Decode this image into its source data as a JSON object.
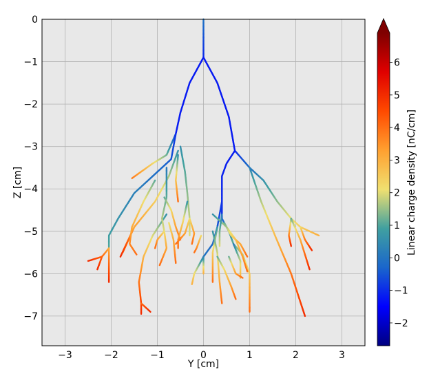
{
  "chart_data": {
    "type": "line",
    "title": "",
    "xlabel": "Y [cm]",
    "ylabel": "Z [cm]",
    "xlim": [
      -3.5,
      3.5
    ],
    "ylim": [
      -7.7,
      0.0
    ],
    "grid": true,
    "x_ticks": [
      -3,
      -2,
      -1,
      0,
      1,
      2,
      3
    ],
    "x_tick_labels": [
      "−3",
      "−2",
      "−1",
      "0",
      "1",
      "2",
      "3"
    ],
    "y_ticks": [
      0,
      -1,
      -2,
      -3,
      -4,
      -5,
      -6,
      -7
    ],
    "y_tick_labels": [
      "0",
      "−1",
      "−2",
      "−3",
      "−4",
      "−5",
      "−6",
      "−7"
    ],
    "colorbar": {
      "label": "Linear charge density [nC/cm]",
      "min": -2.7,
      "max": 6.9,
      "extend": "max",
      "ticks": [
        -2,
        -1,
        0,
        1,
        2,
        3,
        4,
        5,
        6
      ],
      "tick_labels": [
        "−2",
        "−1",
        "0",
        "1",
        "2",
        "3",
        "4",
        "5",
        "6"
      ],
      "colormap": [
        "#00007f",
        "#0000ff",
        "#1a66cc",
        "#40a0a0",
        "#f0e070",
        "#ffa030",
        "#ff4a00",
        "#e00000",
        "#7f0000"
      ]
    },
    "series": [
      {
        "values": [
          [
            0,
            0
          ],
          [
            0,
            -0.9
          ]
        ],
        "charge": [
          0,
          -1
        ]
      },
      {
        "values": [
          [
            0,
            -0.9
          ],
          [
            -0.3,
            -1.5
          ],
          [
            -0.5,
            -2.2
          ],
          [
            -0.6,
            -2.7
          ]
        ],
        "charge": [
          -1.2,
          -1.2
        ]
      },
      {
        "values": [
          [
            0,
            -0.9
          ],
          [
            0.3,
            -1.5
          ],
          [
            0.55,
            -2.3
          ],
          [
            0.68,
            -3.1
          ]
        ],
        "charge": [
          -1.2,
          -1.2
        ]
      },
      {
        "values": [
          [
            -0.6,
            -2.7
          ],
          [
            -0.8,
            -3.2
          ],
          [
            -1.1,
            -3.4
          ],
          [
            -1.55,
            -3.75
          ]
        ],
        "charge": [
          -1,
          3.8
        ]
      },
      {
        "values": [
          [
            -0.6,
            -2.7
          ],
          [
            -0.7,
            -3.3
          ],
          [
            -1.1,
            -3.7
          ],
          [
            -1.5,
            -4.1
          ],
          [
            -1.85,
            -4.7
          ],
          [
            -2.05,
            -5.1
          ],
          [
            -2.05,
            -5.4
          ]
        ],
        "charge": [
          -1,
          1
        ]
      },
      {
        "values": [
          [
            -2.05,
            -5.4
          ],
          [
            -2.2,
            -5.6
          ],
          [
            -2.5,
            -5.7
          ]
        ],
        "charge": [
          3,
          5
        ]
      },
      {
        "values": [
          [
            -2.05,
            -5.4
          ],
          [
            -2.05,
            -5.8
          ],
          [
            -2.05,
            -6.2
          ]
        ],
        "charge": [
          3,
          5
        ]
      },
      {
        "values": [
          [
            -2.2,
            -5.6
          ],
          [
            -2.3,
            -5.9
          ]
        ],
        "charge": [
          4,
          5
        ]
      },
      {
        "values": [
          [
            -0.55,
            -3.2
          ],
          [
            -0.6,
            -3.8
          ],
          [
            -0.55,
            -4.3
          ]
        ],
        "charge": [
          0.4,
          4
        ]
      },
      {
        "values": [
          [
            -0.55,
            -3.1
          ],
          [
            -0.75,
            -3.7
          ],
          [
            -1.05,
            -4.3
          ],
          [
            -1.5,
            -4.9
          ],
          [
            -1.75,
            -5.5
          ]
        ],
        "charge": [
          0.5,
          4
        ]
      },
      {
        "values": [
          [
            -1.5,
            -4.9
          ],
          [
            -1.8,
            -5.6
          ]
        ],
        "charge": [
          3,
          5
        ]
      },
      {
        "values": [
          [
            -1.05,
            -3.8
          ],
          [
            -1.3,
            -4.3
          ],
          [
            -1.55,
            -4.9
          ],
          [
            -1.6,
            -5.3
          ],
          [
            -1.45,
            -5.55
          ]
        ],
        "charge": [
          1,
          4
        ]
      },
      {
        "values": [
          [
            -0.8,
            -4.6
          ],
          [
            -1.1,
            -5.1
          ],
          [
            -1.3,
            -5.6
          ],
          [
            -1.4,
            -6.2
          ],
          [
            -1.35,
            -6.7
          ],
          [
            -1.35,
            -6.95
          ]
        ],
        "charge": [
          0.5,
          5
        ]
      },
      {
        "values": [
          [
            -1.35,
            -6.7
          ],
          [
            -1.15,
            -6.9
          ]
        ],
        "charge": [
          4,
          5
        ]
      },
      {
        "values": [
          [
            -0.8,
            -3.5
          ],
          [
            -0.8,
            -4.2
          ],
          [
            -0.9,
            -4.7
          ],
          [
            -0.85,
            -5.0
          ]
        ],
        "charge": [
          0,
          2
        ]
      },
      {
        "values": [
          [
            -0.85,
            -5.0
          ],
          [
            -1.0,
            -5.2
          ],
          [
            -1.05,
            -5.4
          ]
        ],
        "charge": [
          2,
          4
        ]
      },
      {
        "values": [
          [
            -0.85,
            -5.0
          ],
          [
            -0.8,
            -5.4
          ],
          [
            -0.95,
            -5.8
          ]
        ],
        "charge": [
          2,
          4
        ]
      },
      {
        "values": [
          [
            -0.75,
            -4.8
          ],
          [
            -0.65,
            -5.2
          ],
          [
            -0.6,
            -5.75
          ]
        ],
        "charge": [
          2,
          4
        ]
      },
      {
        "values": [
          [
            -0.85,
            -4.2
          ],
          [
            -0.7,
            -4.5
          ],
          [
            -0.6,
            -4.9
          ],
          [
            -0.5,
            -5.2
          ]
        ],
        "charge": [
          1,
          4
        ]
      },
      {
        "values": [
          [
            -0.5,
            -3.0
          ],
          [
            -0.4,
            -3.6
          ],
          [
            -0.35,
            -4.1
          ],
          [
            -0.3,
            -4.7
          ],
          [
            -0.3,
            -5.1
          ]
        ],
        "charge": [
          0.5,
          2
        ]
      },
      {
        "values": [
          [
            -0.35,
            -4.3
          ],
          [
            -0.45,
            -4.8
          ],
          [
            -0.55,
            -5.2
          ],
          [
            -0.55,
            -5.4
          ]
        ],
        "charge": [
          0.5,
          4
        ]
      },
      {
        "values": [
          [
            -0.3,
            -4.7
          ],
          [
            -0.4,
            -5.05
          ],
          [
            -0.6,
            -5.3
          ]
        ],
        "charge": [
          2,
          4
        ]
      },
      {
        "values": [
          [
            -0.3,
            -4.7
          ],
          [
            -0.2,
            -5.05
          ],
          [
            -0.25,
            -5.3
          ]
        ],
        "charge": [
          2,
          4
        ]
      },
      {
        "values": [
          [
            0.68,
            -3.1
          ],
          [
            1.0,
            -3.5
          ],
          [
            1.3,
            -3.8
          ],
          [
            1.6,
            -4.3
          ],
          [
            1.9,
            -4.7
          ],
          [
            2.1,
            -4.9
          ],
          [
            2.5,
            -5.1
          ]
        ],
        "charge": [
          -1.2,
          3
        ]
      },
      {
        "values": [
          [
            1.9,
            -4.7
          ],
          [
            1.85,
            -5.1
          ],
          [
            1.9,
            -5.35
          ]
        ],
        "charge": [
          1,
          5
        ]
      },
      {
        "values": [
          [
            2.1,
            -4.9
          ],
          [
            2.2,
            -5.2
          ],
          [
            2.35,
            -5.45
          ]
        ],
        "charge": [
          2,
          5
        ]
      },
      {
        "values": [
          [
            1.9,
            -4.7
          ],
          [
            2.1,
            -5.2
          ],
          [
            2.3,
            -5.9
          ]
        ],
        "charge": [
          1,
          5
        ]
      },
      {
        "values": [
          [
            1.0,
            -3.5
          ],
          [
            1.25,
            -4.3
          ],
          [
            1.55,
            -5.1
          ],
          [
            1.9,
            -6.0
          ],
          [
            2.2,
            -7.0
          ]
        ],
        "charge": [
          0.2,
          5
        ]
      },
      {
        "values": [
          [
            0.68,
            -3.1
          ],
          [
            0.5,
            -3.4
          ],
          [
            0.4,
            -3.7
          ],
          [
            0.4,
            -4.3
          ],
          [
            0.4,
            -4.7
          ]
        ],
        "charge": [
          -1.2,
          -1
        ]
      },
      {
        "values": [
          [
            0.4,
            -4.3
          ],
          [
            0.3,
            -4.9
          ],
          [
            0.2,
            -5.3
          ],
          [
            0.0,
            -5.6
          ]
        ],
        "charge": [
          -1,
          0
        ]
      },
      {
        "values": [
          [
            0.0,
            -5.6
          ],
          [
            -0.2,
            -6.0
          ],
          [
            -0.25,
            -6.25
          ]
        ],
        "charge": [
          0,
          3
        ]
      },
      {
        "values": [
          [
            0.0,
            -5.6
          ],
          [
            0.0,
            -6.0
          ]
        ],
        "charge": [
          0,
          3
        ]
      },
      {
        "values": [
          [
            0.4,
            -4.7
          ],
          [
            0.55,
            -5.0
          ],
          [
            0.65,
            -5.3
          ],
          [
            0.85,
            -5.55
          ],
          [
            1.0,
            -6.0
          ],
          [
            1.0,
            -6.9
          ]
        ],
        "charge": [
          -0.5,
          4
        ]
      },
      {
        "values": [
          [
            0.2,
            -4.6
          ],
          [
            0.5,
            -4.9
          ],
          [
            0.7,
            -5.2
          ],
          [
            0.85,
            -5.6
          ],
          [
            0.95,
            -5.95
          ]
        ],
        "charge": [
          0.5,
          4
        ]
      },
      {
        "values": [
          [
            0.65,
            -5.3
          ],
          [
            0.8,
            -5.7
          ],
          [
            0.8,
            -6.1
          ]
        ],
        "charge": [
          0,
          3
        ]
      },
      {
        "values": [
          [
            0.3,
            -4.9
          ],
          [
            0.2,
            -5.5
          ],
          [
            0.2,
            -6.2
          ]
        ],
        "charge": [
          0.5,
          4
        ]
      },
      {
        "values": [
          [
            0.2,
            -5.0
          ],
          [
            0.3,
            -5.5
          ],
          [
            0.35,
            -6.2
          ],
          [
            0.4,
            -6.7
          ]
        ],
        "charge": [
          0.5,
          4
        ]
      },
      {
        "values": [
          [
            0.3,
            -5.6
          ],
          [
            0.45,
            -5.9
          ],
          [
            0.6,
            -6.3
          ],
          [
            0.7,
            -6.6
          ]
        ],
        "charge": [
          1,
          4
        ]
      },
      {
        "values": [
          [
            0.4,
            -4.6
          ],
          [
            0.35,
            -5.0
          ],
          [
            0.35,
            -5.35
          ]
        ],
        "charge": [
          0,
          2
        ]
      },
      {
        "values": [
          [
            0.45,
            -4.8
          ],
          [
            0.6,
            -5.1
          ],
          [
            0.8,
            -5.3
          ],
          [
            0.95,
            -5.6
          ]
        ],
        "charge": [
          1,
          4
        ]
      },
      {
        "values": [
          [
            -0.05,
            -5.1
          ],
          [
            -0.15,
            -5.4
          ],
          [
            -0.2,
            -5.5
          ]
        ],
        "charge": [
          2,
          4
        ]
      },
      {
        "values": [
          [
            0.55,
            -5.6
          ],
          [
            0.7,
            -6.0
          ],
          [
            0.85,
            -6.1
          ]
        ],
        "charge": [
          1,
          4
        ]
      }
    ]
  }
}
